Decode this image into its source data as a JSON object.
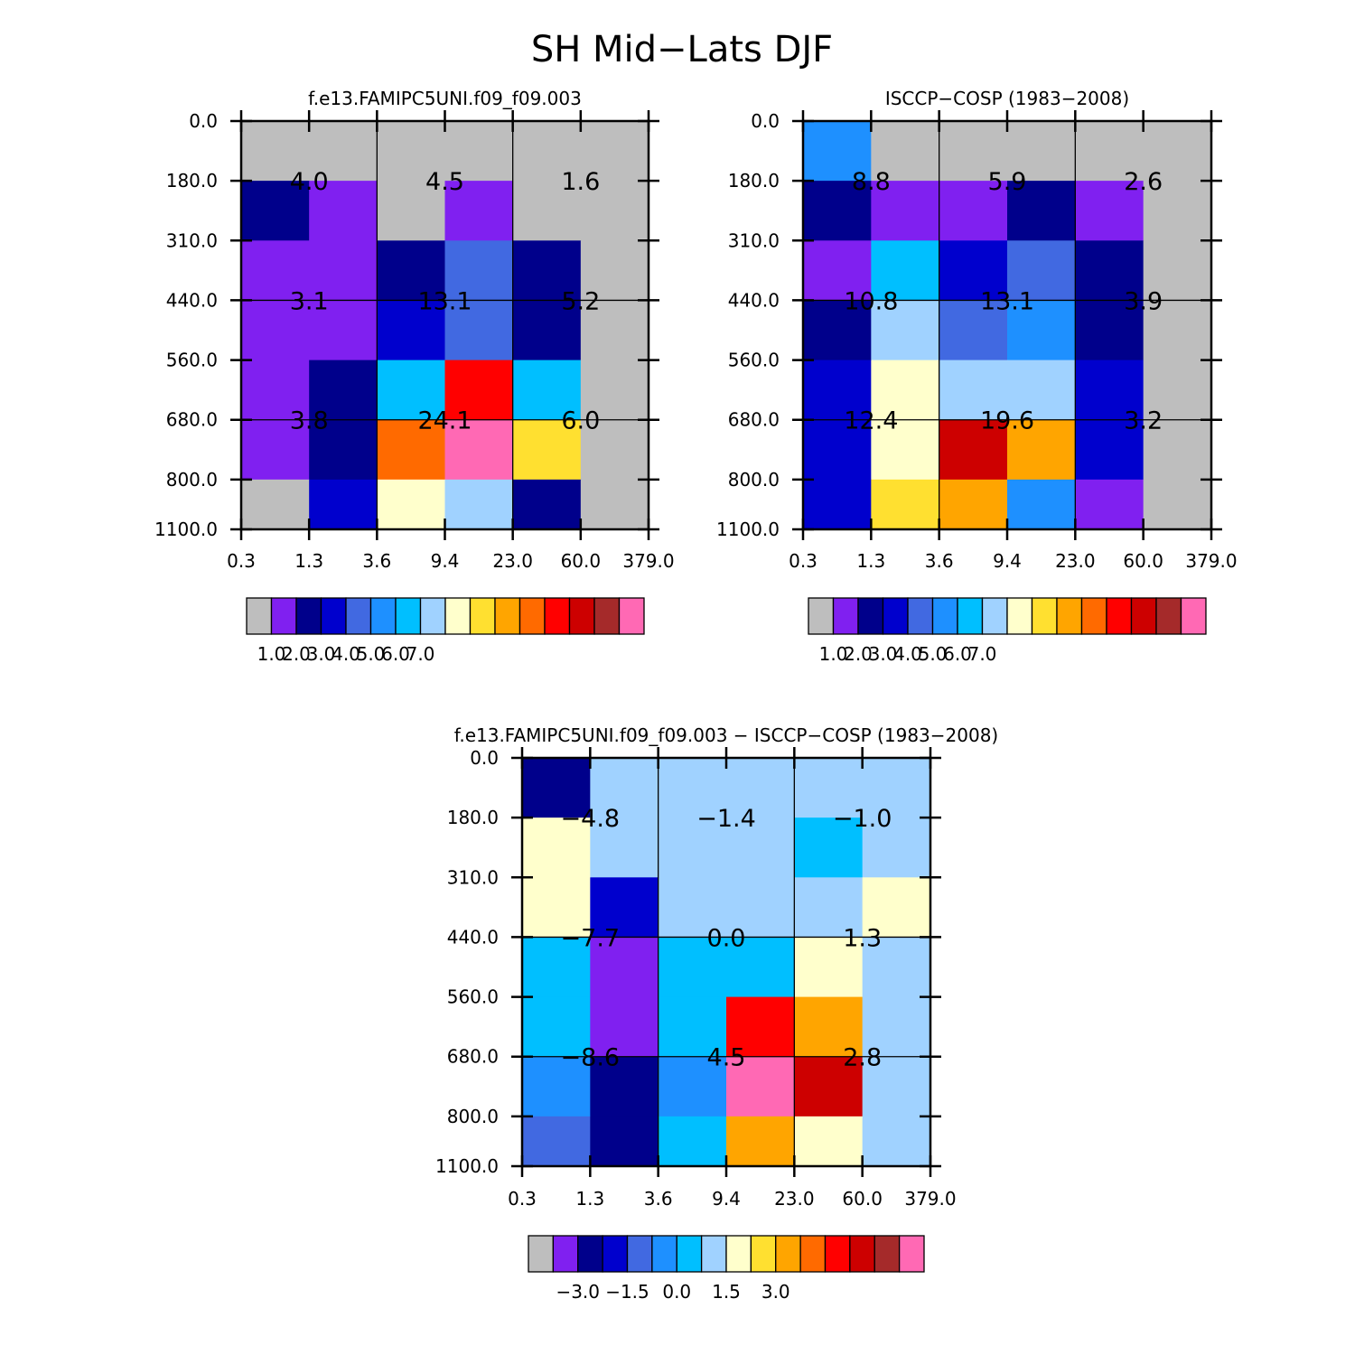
{
  "title": "SH Mid-Lats DJF",
  "palette": [
    "#bebebe",
    "#8020f0",
    "#00008b",
    "#0000cd",
    "#4169e1",
    "#1e90ff",
    "#00bfff",
    "#a0d2ff",
    "#ffffcc",
    "#ffe030",
    "#ffa500",
    "#ff6a00",
    "#ff0000",
    "#cd0000",
    "#a52a2a",
    "#ff69b4"
  ],
  "chart_data": [
    {
      "type": "heatmap",
      "title": "f.e13.FAMIPC5UNI.f09_f09.003",
      "x_tick_labels": [
        "0.3",
        "1.3",
        "3.6",
        "9.4",
        "23.0",
        "60.0",
        "379.0"
      ],
      "y_tick_labels": [
        "0.0",
        "180.0",
        "310.0",
        "440.0",
        "560.0",
        "680.0",
        "800.0",
        "1100.0"
      ],
      "cell_color_index": [
        [
          0,
          0,
          0,
          0,
          0,
          0
        ],
        [
          2,
          1,
          0,
          1,
          0,
          0
        ],
        [
          1,
          1,
          2,
          4,
          2,
          0
        ],
        [
          1,
          1,
          3,
          4,
          2,
          0
        ],
        [
          1,
          2,
          6,
          12,
          6,
          0
        ],
        [
          1,
          2,
          11,
          15,
          9,
          0
        ],
        [
          0,
          3,
          8,
          7,
          2,
          0
        ]
      ],
      "annotations": [
        {
          "row": 0,
          "col": 0,
          "label": "4.0"
        },
        {
          "row": 0,
          "col": 1,
          "label": "4.5"
        },
        {
          "row": 0,
          "col": 2,
          "label": "1.6"
        },
        {
          "row": 1,
          "col": 0,
          "label": "3.1"
        },
        {
          "row": 1,
          "col": 1,
          "label": "13.1"
        },
        {
          "row": 1,
          "col": 2,
          "label": "5.2"
        },
        {
          "row": 2,
          "col": 0,
          "label": "3.8"
        },
        {
          "row": 2,
          "col": 1,
          "label": "24.1"
        },
        {
          "row": 2,
          "col": 2,
          "label": "6.0"
        }
      ],
      "colorbar": {
        "labels": [
          "1.0",
          "2.0",
          "3.0",
          "4.0",
          "5.0",
          "6.0",
          "7.0"
        ]
      }
    },
    {
      "type": "heatmap",
      "title": "ISCCP-COSP (1983-2008)",
      "x_tick_labels": [
        "0.3",
        "1.3",
        "3.6",
        "9.4",
        "23.0",
        "60.0",
        "379.0"
      ],
      "y_tick_labels": [
        "0.0",
        "180.0",
        "310.0",
        "440.0",
        "560.0",
        "680.0",
        "800.0",
        "1100.0"
      ],
      "cell_color_index": [
        [
          5,
          0,
          0,
          0,
          0,
          0
        ],
        [
          2,
          1,
          1,
          2,
          1,
          0
        ],
        [
          1,
          6,
          3,
          4,
          2,
          0
        ],
        [
          2,
          7,
          4,
          5,
          2,
          0
        ],
        [
          3,
          8,
          7,
          7,
          3,
          0
        ],
        [
          3,
          8,
          13,
          10,
          3,
          0
        ],
        [
          3,
          9,
          10,
          5,
          1,
          0
        ]
      ],
      "annotations": [
        {
          "row": 0,
          "col": 0,
          "label": "8.8"
        },
        {
          "row": 0,
          "col": 1,
          "label": "5.9"
        },
        {
          "row": 0,
          "col": 2,
          "label": "2.6"
        },
        {
          "row": 1,
          "col": 0,
          "label": "10.8"
        },
        {
          "row": 1,
          "col": 1,
          "label": "13.1"
        },
        {
          "row": 1,
          "col": 2,
          "label": "3.9"
        },
        {
          "row": 2,
          "col": 0,
          "label": "12.4"
        },
        {
          "row": 2,
          "col": 1,
          "label": "19.6"
        },
        {
          "row": 2,
          "col": 2,
          "label": "3.2"
        }
      ],
      "colorbar": {
        "labels": [
          "1.0",
          "2.0",
          "3.0",
          "4.0",
          "5.0",
          "6.0",
          "7.0"
        ]
      }
    },
    {
      "type": "heatmap",
      "title": "f.e13.FAMIPC5UNI.f09_f09.003 - ISCCP-COSP (1983-2008)",
      "x_tick_labels": [
        "0.3",
        "1.3",
        "3.6",
        "9.4",
        "23.0",
        "60.0",
        "379.0"
      ],
      "y_tick_labels": [
        "0.0",
        "180.0",
        "310.0",
        "440.0",
        "560.0",
        "680.0",
        "800.0",
        "1100.0"
      ],
      "cell_color_index": [
        [
          2,
          7,
          7,
          7,
          7,
          7
        ],
        [
          8,
          7,
          7,
          7,
          6,
          7
        ],
        [
          8,
          3,
          7,
          7,
          7,
          8
        ],
        [
          6,
          1,
          6,
          6,
          8,
          7
        ],
        [
          6,
          1,
          6,
          12,
          10,
          7
        ],
        [
          5,
          2,
          5,
          15,
          13,
          7
        ],
        [
          4,
          2,
          6,
          10,
          8,
          7
        ]
      ],
      "annotations": [
        {
          "row": 0,
          "col": 0,
          "label": "-4.8"
        },
        {
          "row": 0,
          "col": 1,
          "label": "-1.4"
        },
        {
          "row": 0,
          "col": 2,
          "label": "-1.0"
        },
        {
          "row": 1,
          "col": 0,
          "label": "-7.7"
        },
        {
          "row": 1,
          "col": 1,
          "label": "0.0"
        },
        {
          "row": 1,
          "col": 2,
          "label": "1.3"
        },
        {
          "row": 2,
          "col": 0,
          "label": "-8.6"
        },
        {
          "row": 2,
          "col": 1,
          "label": "4.5"
        },
        {
          "row": 2,
          "col": 2,
          "label": "2.8"
        }
      ],
      "colorbar": {
        "labels": [
          "-3.0",
          "-1.5",
          "0.0",
          "1.5",
          "3.0"
        ]
      }
    }
  ]
}
